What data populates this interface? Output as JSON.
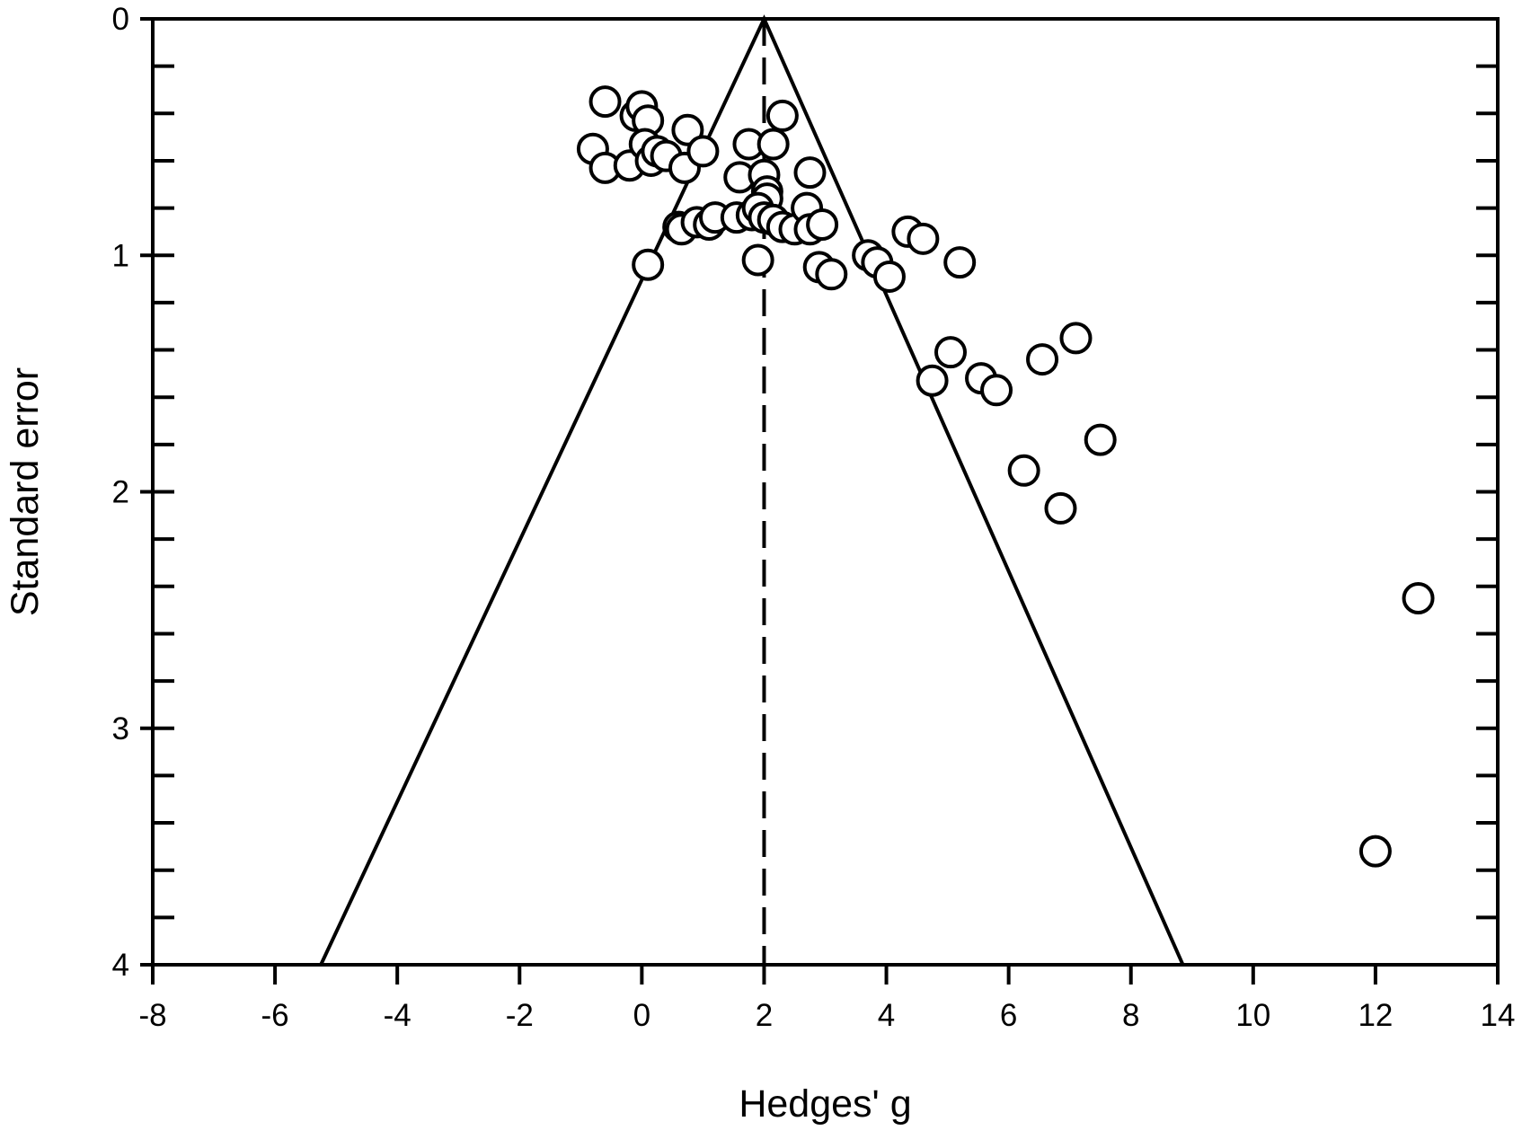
{
  "chart_data": {
    "type": "scatter",
    "title": "",
    "xlabel": "Hedges' g",
    "ylabel": "Standard error",
    "xlim": [
      -8,
      14
    ],
    "ylim": [
      0,
      4
    ],
    "y_inverted": true,
    "x_major_ticks": [
      -8,
      -6,
      -4,
      -2,
      0,
      2,
      4,
      6,
      8,
      10,
      12,
      14
    ],
    "x_tick_labels": [
      "-8",
      "-6",
      "-4",
      "-2",
      "0",
      "2",
      "4",
      "6",
      "8",
      "10",
      "12",
      "14"
    ],
    "y_major_ticks": [
      0,
      1,
      2,
      3,
      4
    ],
    "y_tick_labels": [
      "0",
      "1",
      "2",
      "3",
      "4"
    ],
    "y_minor_step": 0.2,
    "grid": false,
    "legend": "none",
    "pooled_estimate": 2.0,
    "funnel_limits": {
      "apex": [
        2.0,
        0
      ],
      "left_base": [
        -5.25,
        4
      ],
      "right_base": [
        8.85,
        4
      ]
    },
    "marker": "open-circle",
    "colors": {
      "stroke": "#000000",
      "background": "#ffffff"
    },
    "points": [
      {
        "x": -0.6,
        "y": 0.35
      },
      {
        "x": -0.1,
        "y": 0.41
      },
      {
        "x": 0.0,
        "y": 0.37
      },
      {
        "x": 0.1,
        "y": 0.43
      },
      {
        "x": 0.75,
        "y": 0.47
      },
      {
        "x": 2.3,
        "y": 0.41
      },
      {
        "x": -0.8,
        "y": 0.55
      },
      {
        "x": -0.6,
        "y": 0.63
      },
      {
        "x": -0.2,
        "y": 0.62
      },
      {
        "x": 0.05,
        "y": 0.53
      },
      {
        "x": 0.15,
        "y": 0.6
      },
      {
        "x": 0.25,
        "y": 0.56
      },
      {
        "x": 0.4,
        "y": 0.58
      },
      {
        "x": 0.7,
        "y": 0.63
      },
      {
        "x": 1.0,
        "y": 0.56
      },
      {
        "x": 1.75,
        "y": 0.53
      },
      {
        "x": 2.15,
        "y": 0.53
      },
      {
        "x": 1.6,
        "y": 0.67
      },
      {
        "x": 2.0,
        "y": 0.66
      },
      {
        "x": 2.75,
        "y": 0.65
      },
      {
        "x": 2.05,
        "y": 0.73
      },
      {
        "x": 2.05,
        "y": 0.76
      },
      {
        "x": 0.6,
        "y": 0.88
      },
      {
        "x": 0.65,
        "y": 0.89
      },
      {
        "x": 0.9,
        "y": 0.86
      },
      {
        "x": 1.1,
        "y": 0.87
      },
      {
        "x": 1.2,
        "y": 0.84
      },
      {
        "x": 1.55,
        "y": 0.84
      },
      {
        "x": 1.8,
        "y": 0.83
      },
      {
        "x": 1.9,
        "y": 0.8
      },
      {
        "x": 2.0,
        "y": 0.84
      },
      {
        "x": 2.15,
        "y": 0.85
      },
      {
        "x": 2.3,
        "y": 0.88
      },
      {
        "x": 2.5,
        "y": 0.89
      },
      {
        "x": 2.7,
        "y": 0.8
      },
      {
        "x": 2.75,
        "y": 0.89
      },
      {
        "x": 2.95,
        "y": 0.87
      },
      {
        "x": 0.1,
        "y": 1.04
      },
      {
        "x": 1.9,
        "y": 1.02
      },
      {
        "x": 2.9,
        "y": 1.05
      },
      {
        "x": 3.1,
        "y": 1.08
      },
      {
        "x": 3.7,
        "y": 1.0
      },
      {
        "x": 3.85,
        "y": 1.03
      },
      {
        "x": 4.05,
        "y": 1.09
      },
      {
        "x": 4.35,
        "y": 0.9
      },
      {
        "x": 4.6,
        "y": 0.93
      },
      {
        "x": 5.2,
        "y": 1.03
      },
      {
        "x": 5.05,
        "y": 1.41
      },
      {
        "x": 4.75,
        "y": 1.53
      },
      {
        "x": 5.55,
        "y": 1.52
      },
      {
        "x": 5.8,
        "y": 1.57
      },
      {
        "x": 6.55,
        "y": 1.44
      },
      {
        "x": 7.1,
        "y": 1.35
      },
      {
        "x": 7.5,
        "y": 1.78
      },
      {
        "x": 6.25,
        "y": 1.91
      },
      {
        "x": 6.85,
        "y": 2.07
      },
      {
        "x": 12.7,
        "y": 2.45
      },
      {
        "x": 12.0,
        "y": 3.52
      }
    ]
  }
}
